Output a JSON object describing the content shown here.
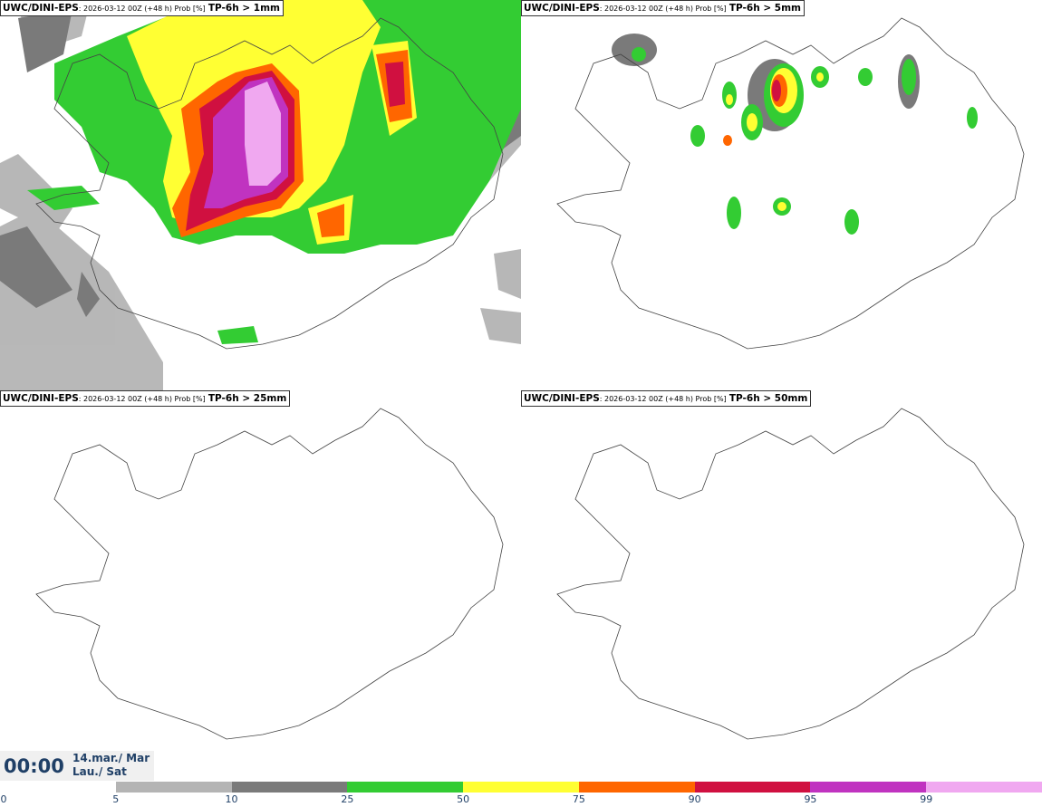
{
  "panels": [
    {
      "title_model": "UWC/DINI-EPS",
      "title_run": ": 2026-03-12 00Z (+48 h) Prob [%]",
      "title_param": "TP-6h > 1mm"
    },
    {
      "title_model": "UWC/DINI-EPS",
      "title_run": ": 2026-03-12 00Z (+48 h) Prob [%]",
      "title_param": "TP-6h > 5mm"
    },
    {
      "title_model": "UWC/DINI-EPS",
      "title_run": ": 2026-03-12 00Z (+48 h) Prob [%]",
      "title_param": "TP-6h > 25mm"
    },
    {
      "title_model": "UWC/DINI-EPS",
      "title_run": ": 2026-03-12 00Z (+48 h) Prob [%]",
      "title_param": "TP-6h > 50mm"
    }
  ],
  "valid_time": {
    "time": "00:00",
    "date_line1": "14.mar./ Mar",
    "date_line2": "Lau./ Sat"
  },
  "colorbar": {
    "ticks": [
      "0",
      "5",
      "10",
      "25",
      "50",
      "75",
      "90",
      "95",
      "99"
    ],
    "colors": [
      "#ffffff",
      "#b4b4b4",
      "#7a7a7a",
      "#33cc33",
      "#ffff33",
      "#ff6600",
      "#d01040",
      "#c033c0",
      "#f0a8f0"
    ]
  }
}
